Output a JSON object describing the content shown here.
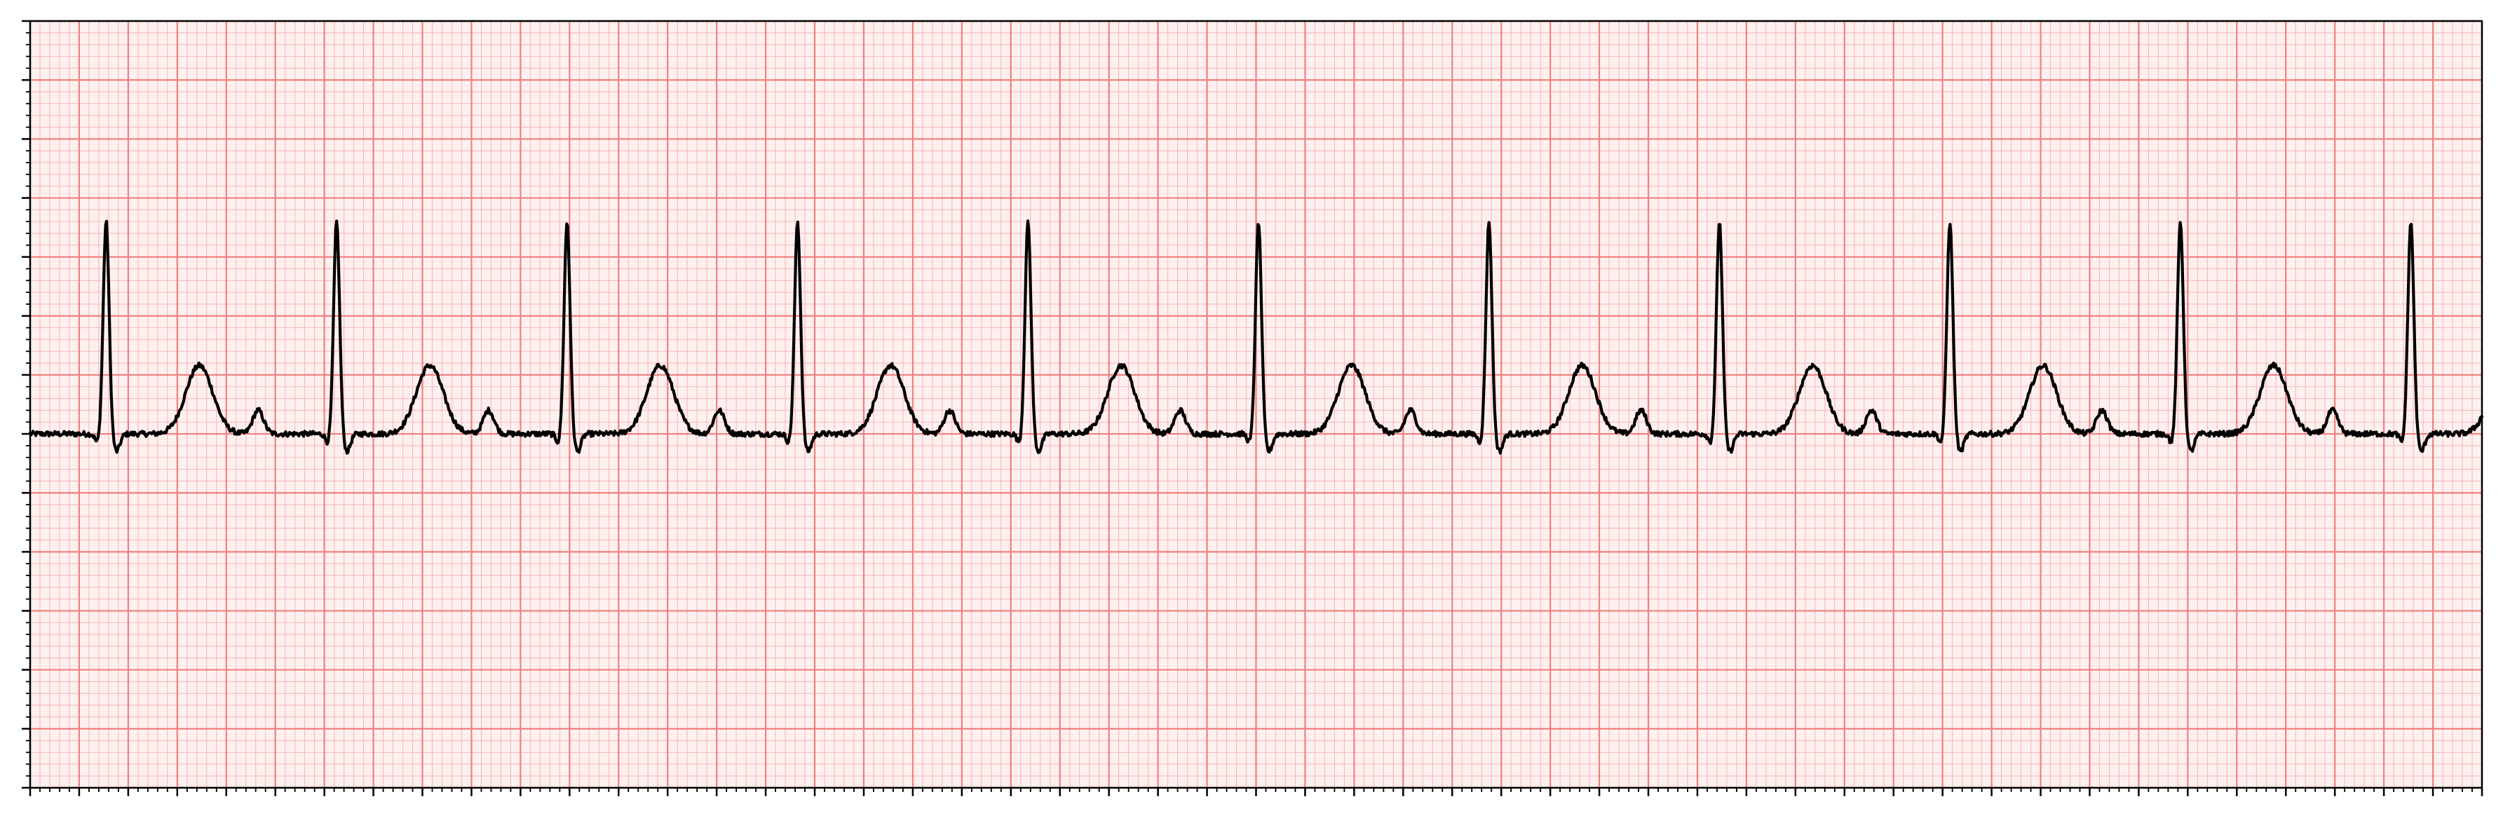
{
  "chart_data": {
    "type": "line",
    "title": "",
    "xlabel": "",
    "ylabel": "",
    "xlim": [
      0,
      10
    ],
    "ylim": [
      -3.0,
      3.5
    ],
    "grid": "ecg",
    "colors": {
      "paper": "#fff0f0",
      "major_grid": "#f08080",
      "minor_grid": "#f8b8b8",
      "trace": "#000000",
      "axes": "#000000"
    },
    "series": [
      {
        "baseline_mV": 0.0,
        "beat_times_s": [
          0.31,
          1.25,
          2.19,
          3.13,
          4.07,
          5.01,
          5.95,
          6.89,
          7.83,
          8.77,
          9.71
        ],
        "r_peak_mV": 1.8,
        "s_wave_mV": -0.1,
        "t_wave_mV": 0.58,
        "p_wave_mV": 0.2,
        "values_approx_s_mV": [
          [
            0.0,
            0.18
          ],
          [
            0.05,
            0.05
          ],
          [
            0.1,
            0.0
          ],
          [
            0.25,
            0.0
          ],
          [
            0.31,
            1.8
          ],
          [
            0.35,
            -0.1
          ],
          [
            0.4,
            0.0
          ],
          [
            0.5,
            0.0
          ],
          [
            0.69,
            0.58
          ],
          [
            0.85,
            0.0
          ],
          [
            0.93,
            0.2
          ],
          [
            0.99,
            0.0
          ],
          [
            1.19,
            0.0
          ],
          [
            1.25,
            1.8
          ],
          [
            1.29,
            -0.1
          ],
          [
            1.34,
            0.0
          ]
        ]
      }
    ]
  }
}
